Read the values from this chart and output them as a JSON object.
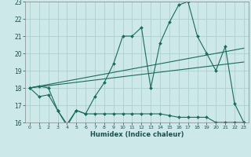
{
  "title": "",
  "xlabel": "Humidex (Indice chaleur)",
  "bg_color": "#cde8e8",
  "grid_color": "#afd0d0",
  "line_color": "#1a6b5a",
  "xlim": [
    -0.5,
    23.5
  ],
  "ylim": [
    16,
    23
  ],
  "xticks": [
    0,
    1,
    2,
    3,
    4,
    5,
    6,
    7,
    8,
    9,
    10,
    11,
    12,
    13,
    14,
    15,
    16,
    17,
    18,
    19,
    20,
    21,
    22,
    23
  ],
  "yticks": [
    16,
    17,
    18,
    19,
    20,
    21,
    22,
    23
  ],
  "line1_x": [
    0,
    1,
    2,
    3,
    4,
    5,
    6,
    7,
    8,
    9,
    10,
    11,
    12,
    13,
    14,
    15,
    16,
    17,
    18,
    19,
    20,
    21,
    22,
    23
  ],
  "line1_y": [
    18.0,
    18.1,
    18.0,
    16.7,
    15.8,
    16.7,
    16.5,
    17.5,
    18.3,
    19.4,
    21.0,
    21.0,
    21.5,
    18.0,
    20.6,
    21.8,
    22.8,
    23.0,
    21.0,
    20.0,
    19.0,
    20.4,
    17.1,
    16.0
  ],
  "line2_x": [
    0,
    1,
    2,
    3,
    4,
    5,
    6,
    7,
    8,
    9,
    10,
    11,
    12,
    13,
    14,
    15,
    16,
    17,
    18,
    19,
    20,
    21,
    22,
    23
  ],
  "line2_y": [
    18.0,
    17.5,
    17.6,
    16.7,
    15.9,
    16.7,
    16.5,
    16.5,
    16.5,
    16.5,
    16.5,
    16.5,
    16.5,
    16.5,
    16.5,
    16.4,
    16.3,
    16.3,
    16.3,
    16.3,
    16.0,
    16.0,
    16.0,
    16.0
  ],
  "line3_x": [
    0,
    23
  ],
  "line3_y": [
    18.0,
    19.5
  ],
  "line4_x": [
    0,
    23
  ],
  "line4_y": [
    18.0,
    20.3
  ]
}
